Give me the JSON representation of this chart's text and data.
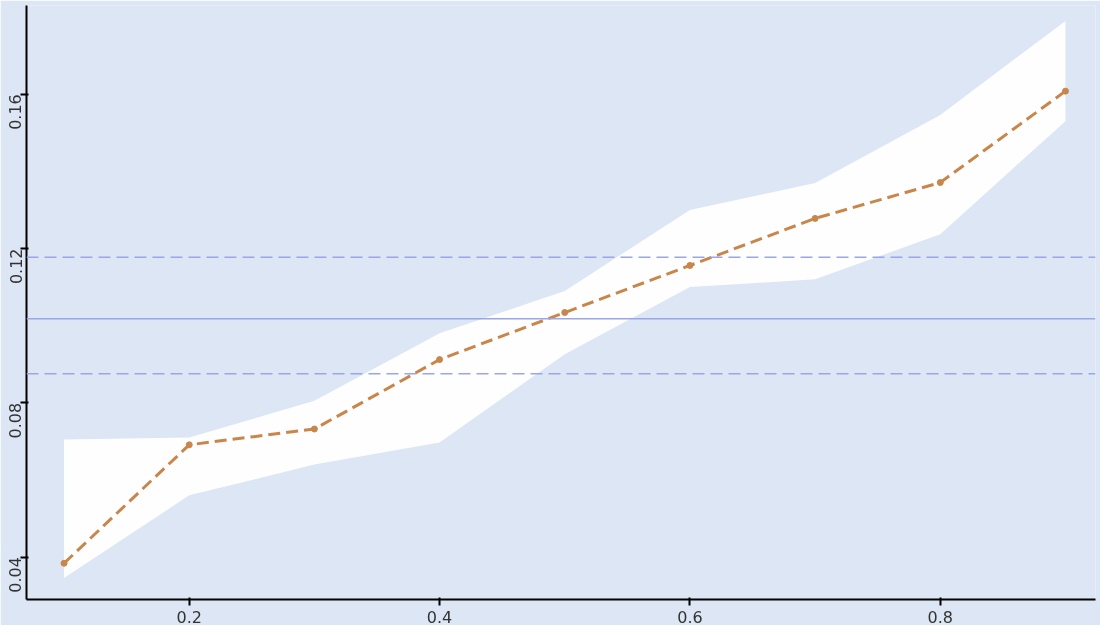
{
  "chart_data": {
    "type": "line",
    "x": [
      0.1,
      0.2,
      0.3,
      0.4,
      0.5,
      0.6,
      0.7,
      0.8,
      0.9
    ],
    "series": [
      {
        "color": "#c8864a",
        "values": [
          0.0384,
          0.0691,
          0.0732,
          0.0912,
          0.1034,
          0.1156,
          0.1278,
          0.1371,
          0.1608
        ],
        "lower": [
          0.0346,
          0.056,
          0.064,
          0.0697,
          0.0926,
          0.11,
          0.112,
          0.1237,
          0.153
        ],
        "upper": [
          0.0705,
          0.071,
          0.0805,
          0.098,
          0.109,
          0.13,
          0.137,
          0.1546,
          0.179
        ]
      }
    ],
    "xlim": [
      0.07,
      0.924
    ],
    "ylim": [
      0.029,
      0.183
    ],
    "xticks": [
      0.2,
      0.4,
      0.6,
      0.8
    ],
    "yticks": [
      0.04,
      0.08,
      0.12,
      0.16
    ],
    "ref_lines": [
      {
        "axis": "y",
        "value": 0.1018,
        "color": "#9aa6e8",
        "line_style": "solid"
      },
      {
        "axis": "y",
        "value": 0.1177,
        "color": "#9aa6e8",
        "line_style": "dashed"
      },
      {
        "axis": "y",
        "value": 0.0875,
        "color": "#9aa6e8",
        "line_style": "dashed"
      }
    ],
    "marker": "circle",
    "line_style": "dashed",
    "grid": false
  }
}
